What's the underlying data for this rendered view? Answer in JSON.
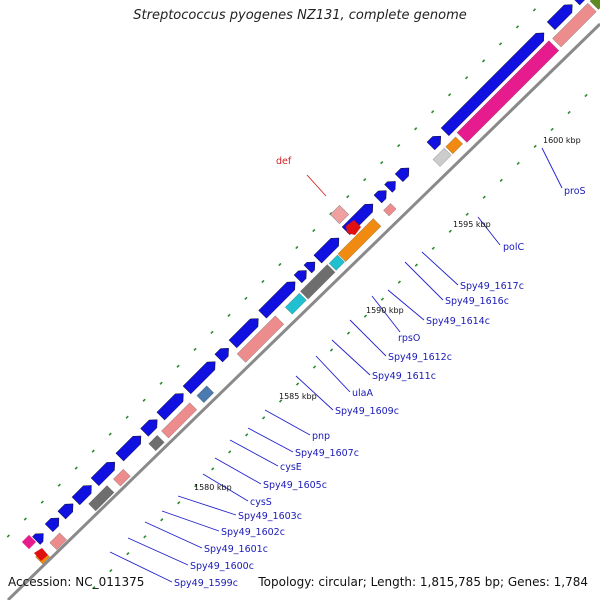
{
  "title": "Streptococcus pyogenes NZ131, complete genome",
  "footer": {
    "accession": "Accession: NC_011375",
    "summary": "Topology: circular; Length: 1,815,785 bp; Genes: 1,784"
  },
  "colors": {
    "backbone": "#8a8a8a",
    "cds": "#1010e0",
    "rna": "#ec8c8c",
    "tick": "#2a8a2a",
    "label_line": "#2020cc",
    "def_line": "#d42020",
    "magenta": "#e61c8e",
    "orange": "#f08a10",
    "cyan": "#20c0d0",
    "gray": "#6e6e6e",
    "steel": "#4a7ab0",
    "olive": "#5a8a20",
    "lavender": "#7a6ad0",
    "red": "#e01010",
    "lightgray": "#cccccc"
  },
  "scale_labels": [
    "1600 kbp",
    "1595 kbp",
    "1590 kbp",
    "1585 kbp",
    "1580 kbp"
  ],
  "gene_labels": [
    {
      "id": "def",
      "text": "def",
      "color": "red"
    },
    {
      "id": "proS",
      "text": "proS"
    },
    {
      "id": "polC",
      "text": "polC"
    },
    {
      "id": "spy49-1617c",
      "text": "Spy49_1617c"
    },
    {
      "id": "spy49-1616c",
      "text": "Spy49_1616c"
    },
    {
      "id": "spy49-1614c",
      "text": "Spy49_1614c"
    },
    {
      "id": "rpsO",
      "text": "rpsO"
    },
    {
      "id": "spy49-1612c",
      "text": "Spy49_1612c"
    },
    {
      "id": "spy49-1611c",
      "text": "Spy49_1611c"
    },
    {
      "id": "ulaA",
      "text": "ulaA"
    },
    {
      "id": "spy49-1609c",
      "text": "Spy49_1609c"
    },
    {
      "id": "pnp",
      "text": "pnp"
    },
    {
      "id": "spy49-1607c",
      "text": "Spy49_1607c"
    },
    {
      "id": "cysE",
      "text": "cysE"
    },
    {
      "id": "spy49-1605c",
      "text": "Spy49_1605c"
    },
    {
      "id": "cysS",
      "text": "cysS"
    },
    {
      "id": "spy49-1603c",
      "text": "Spy49_1603c"
    },
    {
      "id": "spy49-1602c",
      "text": "Spy49_1602c"
    },
    {
      "id": "spy49-1601c",
      "text": "Spy49_1601c"
    },
    {
      "id": "spy49-1600c",
      "text": "Spy49_1600c"
    },
    {
      "id": "spy49-1599c",
      "text": "Spy49_1599c"
    }
  ]
}
